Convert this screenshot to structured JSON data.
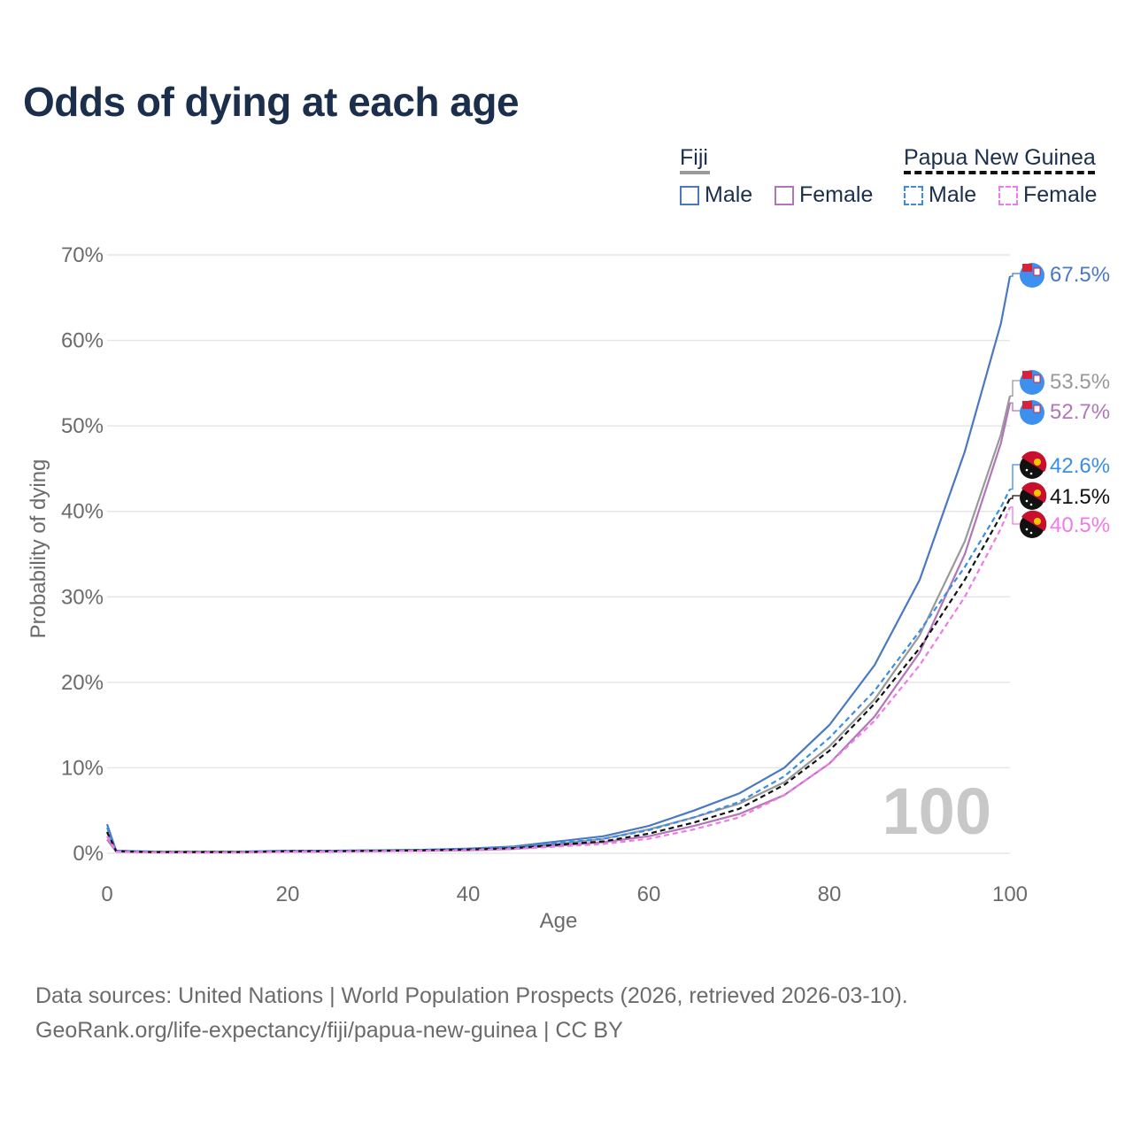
{
  "title": "Odds of dying at each age",
  "legend": {
    "groups": [
      {
        "name": "Fiji",
        "male_label": "Male",
        "female_label": "Female"
      },
      {
        "name": "Papua New Guinea",
        "male_label": "Male",
        "female_label": "Female"
      }
    ]
  },
  "colors": {
    "fiji_male": "#4a78c2",
    "fiji_female": "#b276b8",
    "fiji_total": "#999999",
    "png_male": "#3a8ee6",
    "png_female": "#f07ae6",
    "png_total": "#111111",
    "title": "#1b2f4d",
    "axis_text": "#6b6b6b",
    "grid": "#e6e6e6",
    "watermark": "#c8c8c8"
  },
  "chart_data": {
    "type": "line",
    "title": "Odds of dying at each age",
    "xlabel": "Age",
    "ylabel": "Probability of dying",
    "xlim": [
      0,
      100
    ],
    "ylim": [
      0,
      70
    ],
    "x_ticks": [
      "0",
      "20",
      "40",
      "60",
      "80",
      "100"
    ],
    "y_ticks": [
      "0%",
      "10%",
      "20%",
      "30%",
      "40%",
      "50%",
      "60%",
      "70%"
    ],
    "watermark": "100",
    "x": [
      0,
      1,
      5,
      10,
      15,
      20,
      25,
      30,
      35,
      40,
      45,
      50,
      55,
      60,
      65,
      70,
      75,
      80,
      85,
      90,
      95,
      99,
      100
    ],
    "series": [
      {
        "name": "Fiji Male",
        "key": "fiji_male",
        "dash": false,
        "end_label": "67.5%",
        "values": [
          3.4,
          0.3,
          0.2,
          0.2,
          0.2,
          0.3,
          0.3,
          0.35,
          0.4,
          0.55,
          0.8,
          1.4,
          2.0,
          3.2,
          5.0,
          7.0,
          10.0,
          15.0,
          22.0,
          32.0,
          47.0,
          62.0,
          67.5
        ]
      },
      {
        "name": "Fiji Total",
        "key": "fiji_total",
        "dash": false,
        "end_label": "53.5%",
        "values": [
          2.4,
          0.25,
          0.15,
          0.15,
          0.15,
          0.25,
          0.25,
          0.3,
          0.35,
          0.45,
          0.7,
          1.1,
          1.7,
          2.8,
          4.2,
          5.8,
          8.3,
          12.5,
          18.0,
          25.5,
          36.5,
          49.0,
          53.5
        ]
      },
      {
        "name": "Fiji Female",
        "key": "fiji_female",
        "dash": false,
        "end_label": "52.7%",
        "values": [
          1.6,
          0.2,
          0.1,
          0.1,
          0.1,
          0.2,
          0.2,
          0.25,
          0.3,
          0.35,
          0.5,
          0.9,
          1.3,
          2.0,
          3.2,
          4.6,
          6.8,
          10.5,
          16.0,
          23.5,
          35.0,
          48.0,
          52.7
        ]
      },
      {
        "name": "Papua New Guinea Male",
        "key": "png_male",
        "dash": true,
        "end_label": "42.6%",
        "values": [
          3.0,
          0.3,
          0.2,
          0.2,
          0.2,
          0.3,
          0.3,
          0.35,
          0.4,
          0.5,
          0.7,
          1.2,
          1.7,
          2.7,
          4.2,
          6.0,
          9.0,
          13.5,
          19.0,
          26.0,
          33.5,
          40.5,
          42.6
        ]
      },
      {
        "name": "Papua New Guinea Total",
        "key": "png_total",
        "dash": true,
        "end_label": "41.5%",
        "values": [
          2.5,
          0.25,
          0.15,
          0.15,
          0.15,
          0.25,
          0.25,
          0.3,
          0.35,
          0.45,
          0.6,
          1.0,
          1.4,
          2.3,
          3.6,
          5.2,
          8.0,
          12.0,
          17.5,
          24.0,
          32.0,
          39.5,
          41.5
        ]
      },
      {
        "name": "Papua New Guinea Female",
        "key": "png_female",
        "dash": true,
        "end_label": "40.5%",
        "values": [
          2.0,
          0.2,
          0.1,
          0.1,
          0.1,
          0.2,
          0.2,
          0.25,
          0.3,
          0.35,
          0.5,
          0.8,
          1.1,
          1.7,
          2.8,
          4.2,
          6.8,
          10.5,
          15.5,
          22.0,
          30.0,
          38.0,
          40.5
        ]
      }
    ]
  },
  "footer": {
    "line1": "Data sources: United Nations | World Population Prospects (2026, retrieved 2026-03-10).",
    "line2": "GeoRank.org/life-expectancy/fiji/papua-new-guinea | CC BY"
  }
}
